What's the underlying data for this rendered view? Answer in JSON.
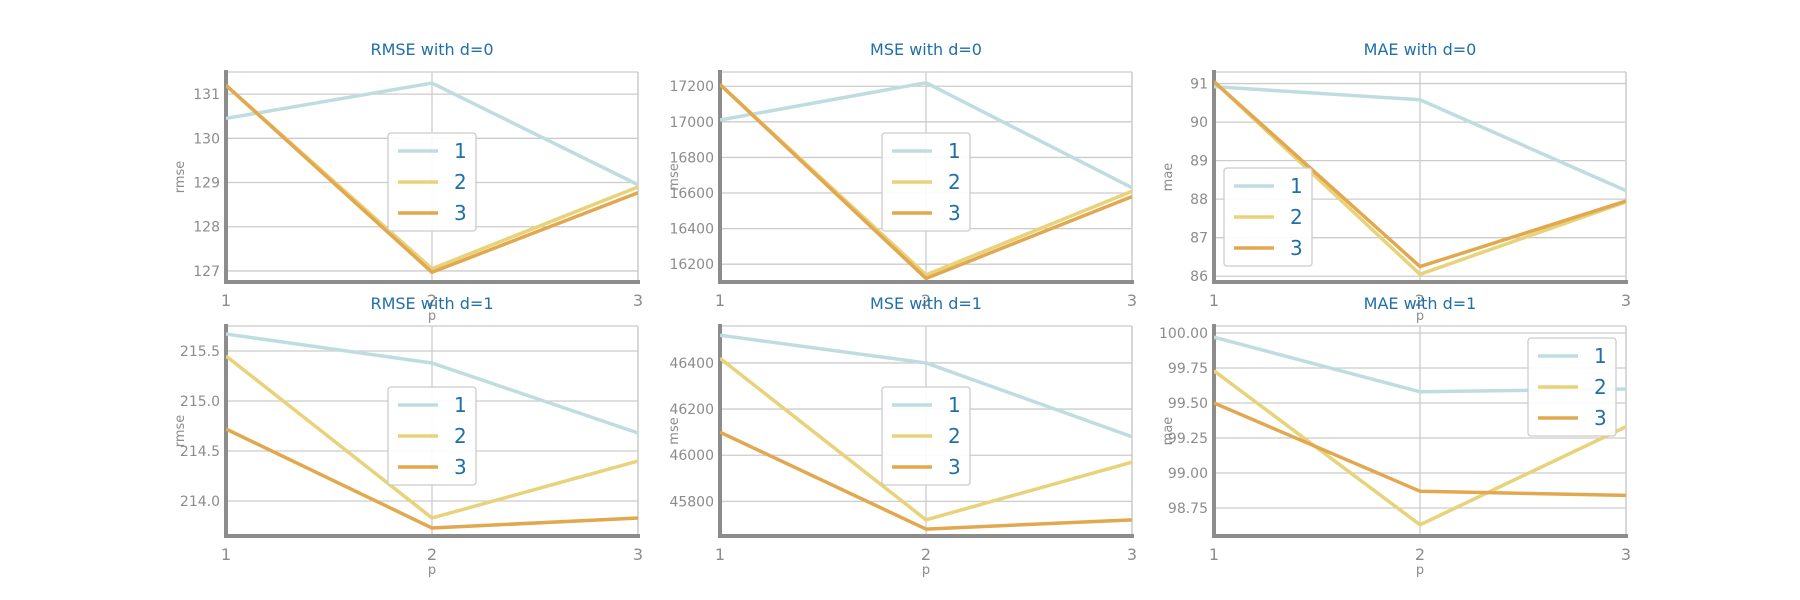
{
  "colors": {
    "1": "#bfdde1",
    "2": "#e8d27a",
    "3": "#e2a84f"
  },
  "chart_data": [
    {
      "type": "line",
      "title": "RMSE with d=0",
      "xlabel": "p",
      "ylabel": "rmse",
      "x": [
        1,
        2,
        3
      ],
      "xlim": [
        1,
        3
      ],
      "ylim": [
        126.75,
        131.5
      ],
      "yticks": [
        127,
        128,
        129,
        130,
        131
      ],
      "grid": true,
      "legend_position": "center",
      "series": [
        {
          "name": "1",
          "values": [
            130.45,
            131.25,
            128.95
          ]
        },
        {
          "name": "2",
          "values": [
            131.2,
            127.05,
            128.9
          ]
        },
        {
          "name": "3",
          "values": [
            131.2,
            126.97,
            128.77
          ]
        }
      ]
    },
    {
      "type": "line",
      "title": "MSE with d=0",
      "xlabel": "",
      "ylabel": "mse",
      "x": [
        1,
        2,
        3
      ],
      "xlim": [
        1,
        3
      ],
      "ylim": [
        16100,
        17280
      ],
      "yticks": [
        16200,
        16400,
        16600,
        16800,
        17000,
        17200
      ],
      "grid": true,
      "legend_position": "center",
      "series": [
        {
          "name": "1",
          "values": [
            17010,
            17220,
            16630
          ]
        },
        {
          "name": "2",
          "values": [
            17210,
            16140,
            16610
          ]
        },
        {
          "name": "3",
          "values": [
            17210,
            16120,
            16580
          ]
        }
      ]
    },
    {
      "type": "line",
      "title": "MAE with d=0",
      "xlabel": "p",
      "ylabel": "mae",
      "x": [
        1,
        2,
        3
      ],
      "xlim": [
        1,
        3
      ],
      "ylim": [
        85.85,
        91.3
      ],
      "yticks": [
        86,
        87,
        88,
        89,
        90,
        91
      ],
      "grid": true,
      "legend_position": "center-left",
      "series": [
        {
          "name": "1",
          "values": [
            90.92,
            90.58,
            88.22
          ]
        },
        {
          "name": "2",
          "values": [
            91.05,
            86.05,
            87.93
          ]
        },
        {
          "name": "3",
          "values": [
            91.05,
            86.25,
            87.95
          ]
        }
      ]
    },
    {
      "type": "line",
      "title": "RMSE with d=1",
      "xlabel": "p",
      "ylabel": "rmse",
      "x": [
        1,
        2,
        3
      ],
      "xlim": [
        1,
        3
      ],
      "ylim": [
        213.65,
        215.75
      ],
      "yticks": [
        214.0,
        214.5,
        215.0,
        215.5
      ],
      "ytick_labels": [
        "214.0",
        "214.5",
        "215.0",
        "215.5"
      ],
      "grid": true,
      "legend_position": "center",
      "series": [
        {
          "name": "1",
          "values": [
            215.67,
            215.38,
            214.68
          ]
        },
        {
          "name": "2",
          "values": [
            215.45,
            213.83,
            214.4
          ]
        },
        {
          "name": "3",
          "values": [
            214.72,
            213.73,
            213.83
          ]
        }
      ]
    },
    {
      "type": "line",
      "title": "MSE with d=1",
      "xlabel": "p",
      "ylabel": "mse",
      "x": [
        1,
        2,
        3
      ],
      "xlim": [
        1,
        3
      ],
      "ylim": [
        45650,
        46560
      ],
      "yticks": [
        45800,
        46000,
        46200,
        46400
      ],
      "grid": true,
      "legend_position": "center",
      "series": [
        {
          "name": "1",
          "values": [
            46520,
            46400,
            46080
          ]
        },
        {
          "name": "2",
          "values": [
            46420,
            45720,
            45970
          ]
        },
        {
          "name": "3",
          "values": [
            46100,
            45680,
            45720
          ]
        }
      ]
    },
    {
      "type": "line",
      "title": "MAE with d=1",
      "xlabel": "p",
      "ylabel": "mae",
      "x": [
        1,
        2,
        3
      ],
      "xlim": [
        1,
        3
      ],
      "ylim": [
        98.55,
        100.05
      ],
      "yticks": [
        98.75,
        99.0,
        99.25,
        99.5,
        99.75,
        100.0
      ],
      "ytick_labels": [
        "98.75",
        "99.00",
        "99.25",
        "99.50",
        "99.75",
        "100.00"
      ],
      "grid": true,
      "legend_position": "upper-right",
      "series": [
        {
          "name": "1",
          "values": [
            99.97,
            99.58,
            99.6
          ]
        },
        {
          "name": "2",
          "values": [
            99.73,
            98.63,
            99.33
          ]
        },
        {
          "name": "3",
          "values": [
            99.5,
            98.87,
            98.84
          ]
        }
      ]
    }
  ]
}
